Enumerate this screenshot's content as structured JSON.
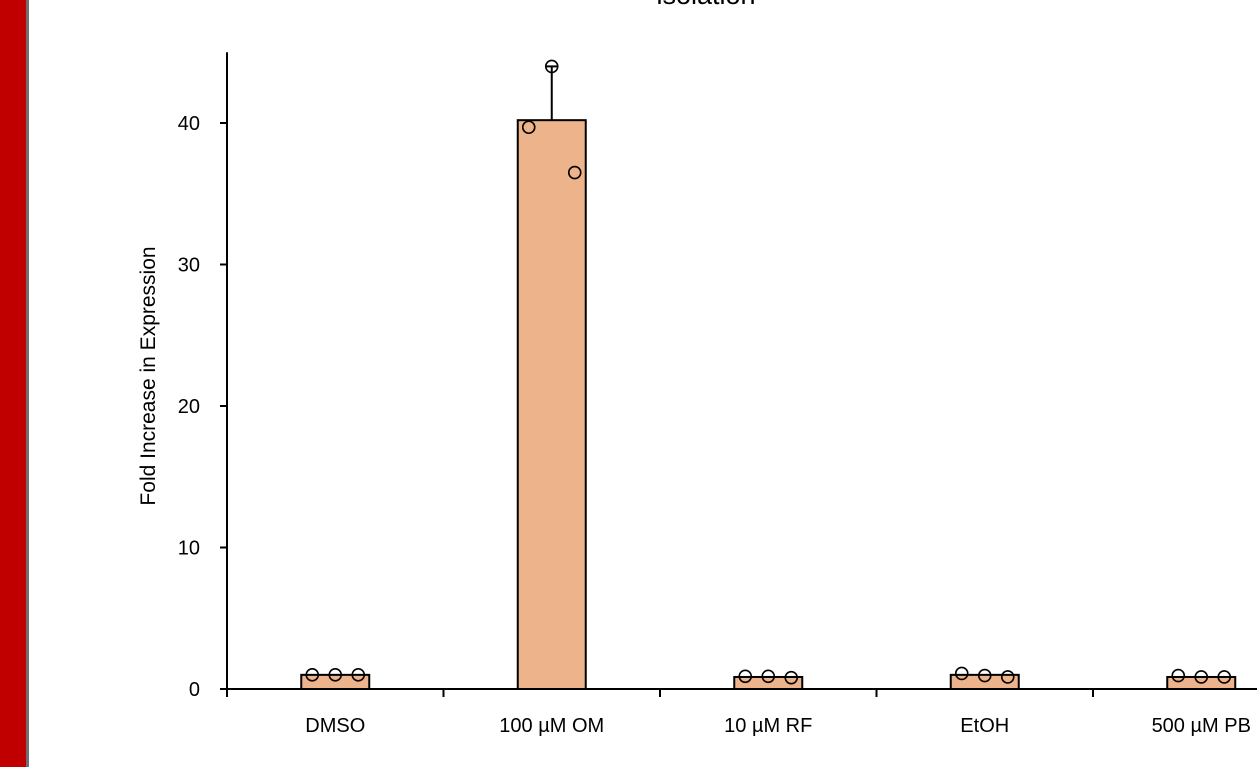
{
  "side_band_color": "#c00000",
  "chart_data": {
    "type": "bar",
    "title": "isolation",
    "xlabel": "",
    "ylabel": "Fold Increase in Expression",
    "categories": [
      "DMSO",
      "100 µM OM",
      "10 µM RF",
      "EtOH",
      "500 µM PB"
    ],
    "values": [
      1.0,
      40.2,
      0.85,
      1.0,
      0.85
    ],
    "error_upper": [
      null,
      44.0,
      null,
      null,
      null
    ],
    "replicates": [
      [
        1.0,
        1.0,
        1.0
      ],
      [
        39.7,
        44.0,
        36.5
      ],
      [
        0.9,
        0.9,
        0.8
      ],
      [
        1.1,
        0.95,
        0.85
      ],
      [
        0.95,
        0.85,
        0.85
      ]
    ],
    "ylim": [
      0,
      45
    ],
    "yticks": [
      0,
      10,
      20,
      30,
      40
    ],
    "grid": false,
    "bar_color": "#edb38a",
    "bar_edge_color": "#000000",
    "marker_fill": "#ffffff"
  }
}
